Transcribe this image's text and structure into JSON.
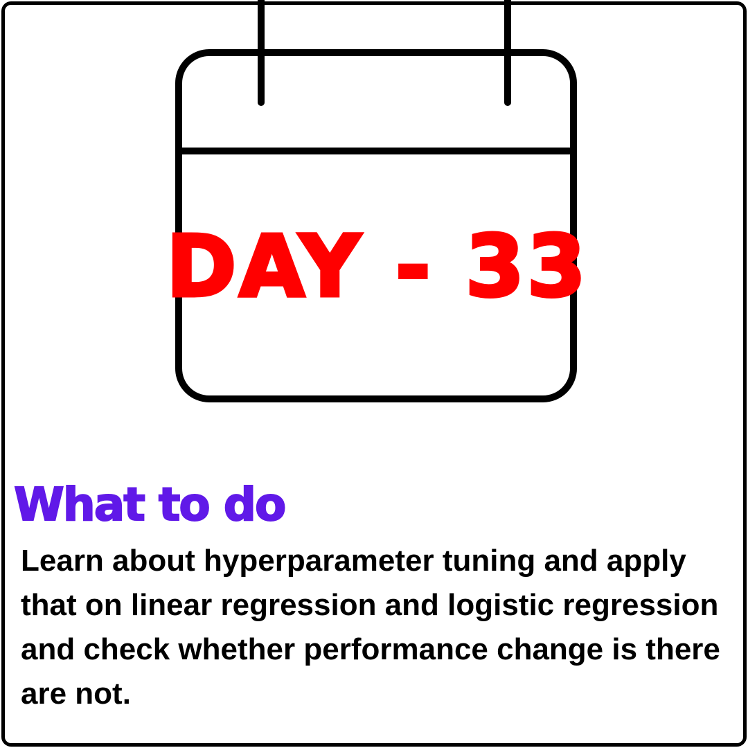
{
  "calendar": {
    "day_label": "DAY - 33"
  },
  "section": {
    "heading": "What to do",
    "body": "Learn about hyperparameter tuning and apply that on linear regression and logistic regression and check whether performance change is there are not."
  },
  "colors": {
    "day_label": "#ff0000",
    "heading": "#6019e8",
    "body": "#000000",
    "outline": "#000000",
    "background": "#ffffff"
  },
  "icons": {
    "calendar": "calendar-icon"
  }
}
